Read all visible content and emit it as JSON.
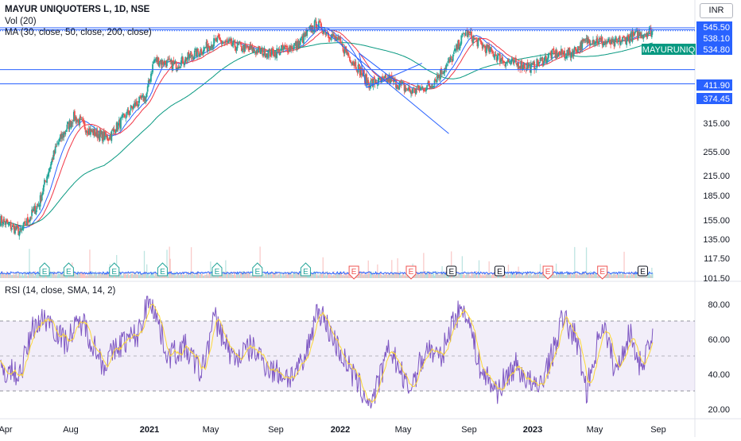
{
  "header": {
    "title": "MAYUR UNIQUOTERS L, 1D, NSE",
    "volume_indicator": "Vol (20)",
    "ma_indicator": "MA (30, close, 50, close, 200, close)",
    "rsi_indicator": "RSI (14, close, SMA, 14, 2)",
    "currency": "INR"
  },
  "colors": {
    "up": "#26a69a",
    "down": "#ef5350",
    "ma30": "#2962ff",
    "ma50": "#f23645",
    "ma200": "#089981",
    "rsi": "#7e57c2",
    "rsi_ma": "#fdd835",
    "horizontal_lines": "#2962ff",
    "trendlines": "#2962ff",
    "volume_ma": "#2962ff",
    "price_label_bg": "#2962ff",
    "symbol_label_bg": "#089981"
  },
  "chart_data": {
    "type": "candlestick",
    "symbol_label": "MAYURUNIQ",
    "last_price": "534.80",
    "price_scale": "log",
    "price_axis_ticks": [
      "545.50",
      "538.10",
      "534.80",
      "411.90",
      "374.45",
      "315.00",
      "255.00",
      "215.00",
      "185.00",
      "155.00",
      "135.00",
      "117.50",
      "101.50"
    ],
    "horizontal_lines": [
      545.5,
      538.1,
      411.9,
      374.45
    ],
    "x_axis_labels": [
      "Apr",
      "Aug",
      "2021",
      "May",
      "Sep",
      "2022",
      "May",
      "Sep",
      "2023",
      "May",
      "Sep"
    ],
    "date_range": [
      "2020-04-01",
      "2023-08-29"
    ],
    "price_series_approx": [
      {
        "date": "2020-04-01",
        "close": 150
      },
      {
        "date": "2020-05-10",
        "close": 138
      },
      {
        "date": "2020-06-15",
        "close": 168
      },
      {
        "date": "2020-07-20",
        "close": 250
      },
      {
        "date": "2020-08-20",
        "close": 300
      },
      {
        "date": "2020-09-20",
        "close": 272
      },
      {
        "date": "2020-10-25",
        "close": 260
      },
      {
        "date": "2020-12-10",
        "close": 320
      },
      {
        "date": "2021-01-05",
        "close": 345
      },
      {
        "date": "2021-01-20",
        "close": 440
      },
      {
        "date": "2021-03-01",
        "close": 425
      },
      {
        "date": "2021-04-15",
        "close": 465
      },
      {
        "date": "2021-05-20",
        "close": 500
      },
      {
        "date": "2021-07-10",
        "close": 475
      },
      {
        "date": "2021-09-01",
        "close": 460
      },
      {
        "date": "2021-10-20",
        "close": 485
      },
      {
        "date": "2021-11-25",
        "close": 560
      },
      {
        "date": "2022-01-05",
        "close": 500
      },
      {
        "date": "2022-02-01",
        "close": 440
      },
      {
        "date": "2022-03-05",
        "close": 375
      },
      {
        "date": "2022-04-15",
        "close": 385
      },
      {
        "date": "2022-05-25",
        "close": 355
      },
      {
        "date": "2022-07-01",
        "close": 370
      },
      {
        "date": "2022-08-10",
        "close": 440
      },
      {
        "date": "2022-09-05",
        "close": 530
      },
      {
        "date": "2022-10-15",
        "close": 475
      },
      {
        "date": "2022-11-20",
        "close": 435
      },
      {
        "date": "2023-01-10",
        "close": 418
      },
      {
        "date": "2023-02-15",
        "close": 455
      },
      {
        "date": "2023-03-25",
        "close": 460
      },
      {
        "date": "2023-05-01",
        "close": 505
      },
      {
        "date": "2023-06-15",
        "close": 490
      },
      {
        "date": "2023-07-20",
        "close": 515
      },
      {
        "date": "2023-08-29",
        "close": 534.8
      }
    ],
    "rsi_axis_ticks": [
      "80.00",
      "60.00",
      "40.00",
      "20.00"
    ],
    "rsi_bands": [
      30,
      50,
      70
    ],
    "rsi_series_approx": [
      {
        "date": "2020-04-01",
        "rsi": 42
      },
      {
        "date": "2020-05-10",
        "rsi": 40
      },
      {
        "date": "2020-06-05",
        "rsi": 68
      },
      {
        "date": "2020-07-01",
        "rsi": 72
      },
      {
        "date": "2020-08-01",
        "rsi": 58
      },
      {
        "date": "2020-09-05",
        "rsi": 70
      },
      {
        "date": "2020-10-15",
        "rsi": 45
      },
      {
        "date": "2020-11-20",
        "rsi": 58
      },
      {
        "date": "2020-12-20",
        "rsi": 62
      },
      {
        "date": "2021-01-12",
        "rsi": 85
      },
      {
        "date": "2021-02-15",
        "rsi": 50
      },
      {
        "date": "2021-03-20",
        "rsi": 55
      },
      {
        "date": "2021-04-20",
        "rsi": 40
      },
      {
        "date": "2021-05-15",
        "rsi": 72
      },
      {
        "date": "2021-06-20",
        "rsi": 48
      },
      {
        "date": "2021-07-25",
        "rsi": 55
      },
      {
        "date": "2021-09-01",
        "rsi": 42
      },
      {
        "date": "2021-10-05",
        "rsi": 38
      },
      {
        "date": "2021-11-01",
        "rsi": 45
      },
      {
        "date": "2021-11-28",
        "rsi": 78
      },
      {
        "date": "2022-01-05",
        "rsi": 55
      },
      {
        "date": "2022-02-10",
        "rsi": 35
      },
      {
        "date": "2022-03-10",
        "rsi": 22
      },
      {
        "date": "2022-04-15",
        "rsi": 55
      },
      {
        "date": "2022-05-20",
        "rsi": 30
      },
      {
        "date": "2022-06-25",
        "rsi": 55
      },
      {
        "date": "2022-07-20",
        "rsi": 48
      },
      {
        "date": "2022-08-15",
        "rsi": 72
      },
      {
        "date": "2022-09-05",
        "rsi": 78
      },
      {
        "date": "2022-10-05",
        "rsi": 42
      },
      {
        "date": "2022-11-05",
        "rsi": 30
      },
      {
        "date": "2022-12-10",
        "rsi": 45
      },
      {
        "date": "2023-01-20",
        "rsi": 30
      },
      {
        "date": "2023-02-20",
        "rsi": 52
      },
      {
        "date": "2023-03-10",
        "rsi": 72
      },
      {
        "date": "2023-04-05",
        "rsi": 60
      },
      {
        "date": "2023-04-25",
        "rsi": 30
      },
      {
        "date": "2023-05-25",
        "rsi": 70
      },
      {
        "date": "2023-06-20",
        "rsi": 40
      },
      {
        "date": "2023-07-15",
        "rsi": 64
      },
      {
        "date": "2023-08-05",
        "rsi": 45
      },
      {
        "date": "2023-08-29",
        "rsi": 60
      }
    ],
    "earnings_markers": [
      {
        "date": "2020-06-25",
        "type": "E",
        "result": "positive"
      },
      {
        "date": "2020-08-10",
        "type": "E",
        "result": "positive"
      },
      {
        "date": "2020-11-05",
        "type": "E",
        "result": "positive"
      },
      {
        "date": "2021-02-05",
        "type": "E",
        "result": "positive"
      },
      {
        "date": "2021-05-20",
        "type": "E",
        "result": "positive"
      },
      {
        "date": "2021-08-05",
        "type": "E",
        "result": "positive"
      },
      {
        "date": "2021-11-05",
        "type": "E",
        "result": "positive"
      },
      {
        "date": "2022-02-05",
        "type": "E",
        "result": "negative"
      },
      {
        "date": "2022-05-25",
        "type": "E",
        "result": "negative"
      },
      {
        "date": "2022-08-10",
        "type": "E",
        "result": "neutral"
      },
      {
        "date": "2022-11-10",
        "type": "E",
        "result": "neutral"
      },
      {
        "date": "2023-02-10",
        "type": "E",
        "result": "negative"
      },
      {
        "date": "2023-05-25",
        "type": "E",
        "result": "negative"
      },
      {
        "date": "2023-08-10",
        "type": "E",
        "result": "neutral"
      }
    ]
  }
}
